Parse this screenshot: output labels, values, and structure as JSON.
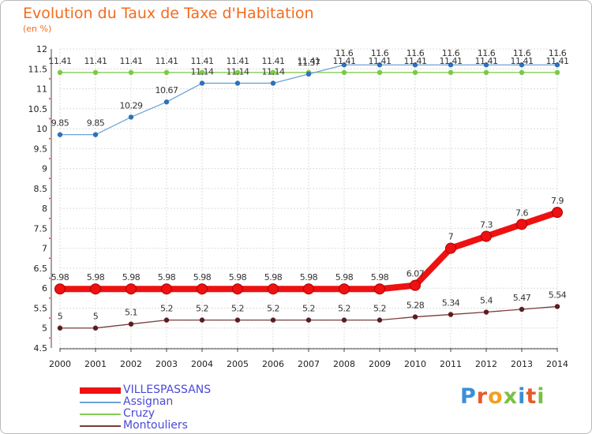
{
  "title": "Evolution du Taux de Taxe d'Habitation",
  "subtitle": "(en %)",
  "logo_text": "Proxiti",
  "chart_data": {
    "type": "line",
    "title": "Evolution du Taux de Taxe d'Habitation",
    "ylabel": "(en %)",
    "xlabel": "",
    "categories": [
      "2000",
      "2001",
      "2002",
      "2003",
      "2004",
      "2005",
      "2006",
      "2007",
      "2008",
      "2009",
      "2010",
      "2011",
      "2012",
      "2013",
      "2014"
    ],
    "ylim": [
      4.5,
      12
    ],
    "yticks": [
      "4.5",
      "5",
      "5.5",
      "6",
      "6.5",
      "7",
      "7.5",
      "8",
      "8.5",
      "9",
      "9.5",
      "10",
      "10.5",
      "11",
      "11.5",
      "12"
    ],
    "grid": true,
    "legend_position": "bottom-left",
    "series": [
      {
        "name": "VILLESPASSANS",
        "color": "#ee1111",
        "values": [
          5.98,
          5.98,
          5.98,
          5.98,
          5.98,
          5.98,
          5.98,
          5.98,
          5.98,
          5.98,
          6.07,
          7,
          7.3,
          7.6,
          7.9
        ],
        "labels": [
          "5.98",
          "5.98",
          "5.98",
          "5.98",
          "5.98",
          "5.98",
          "5.98",
          "5.98",
          "5.98",
          "5.98",
          "6.07",
          "7",
          "7.3",
          "7.6",
          "7.9"
        ]
      },
      {
        "name": "Assignan",
        "color": "#6ea3d8",
        "marker_color": "#2e72b8",
        "values": [
          9.85,
          9.85,
          10.29,
          10.67,
          11.14,
          11.14,
          11.14,
          11.37,
          11.6,
          11.6,
          11.6,
          11.6,
          11.6,
          11.6,
          11.6
        ],
        "labels": [
          "9.85",
          "9.85",
          "10.29",
          "10.67",
          "11.14",
          "11.14",
          "11.14",
          "11.37",
          "11.6",
          "11.6",
          "11.6",
          "11.6",
          "11.6",
          "11.6",
          "11.6"
        ]
      },
      {
        "name": "Cruzy",
        "color": "#86cf55",
        "marker_color": "#7cc947",
        "values": [
          11.41,
          11.41,
          11.41,
          11.41,
          11.41,
          11.41,
          11.41,
          11.41,
          11.41,
          11.41,
          11.41,
          11.41,
          11.41,
          11.41,
          11.41
        ],
        "labels": [
          "11.41",
          "11.41",
          "11.41",
          "11.41",
          "11.41",
          "11.41",
          "11.41",
          "11.41",
          "11.41",
          "11.41",
          "11.41",
          "11.41",
          "11.41",
          "11.41",
          "11.41"
        ]
      },
      {
        "name": "Montouliers",
        "color": "#7a3b3b",
        "marker_color": "#5c1d1d",
        "values": [
          5,
          5,
          5.1,
          5.2,
          5.2,
          5.2,
          5.2,
          5.2,
          5.2,
          5.2,
          5.28,
          5.34,
          5.4,
          5.47,
          5.54
        ],
        "labels": [
          "5",
          "5",
          "5.1",
          "5.2",
          "5.2",
          "5.2",
          "5.2",
          "5.2",
          "5.2",
          "5.2",
          "5.28",
          "5.34",
          "5.4",
          "5.47",
          "5.54"
        ]
      }
    ]
  }
}
